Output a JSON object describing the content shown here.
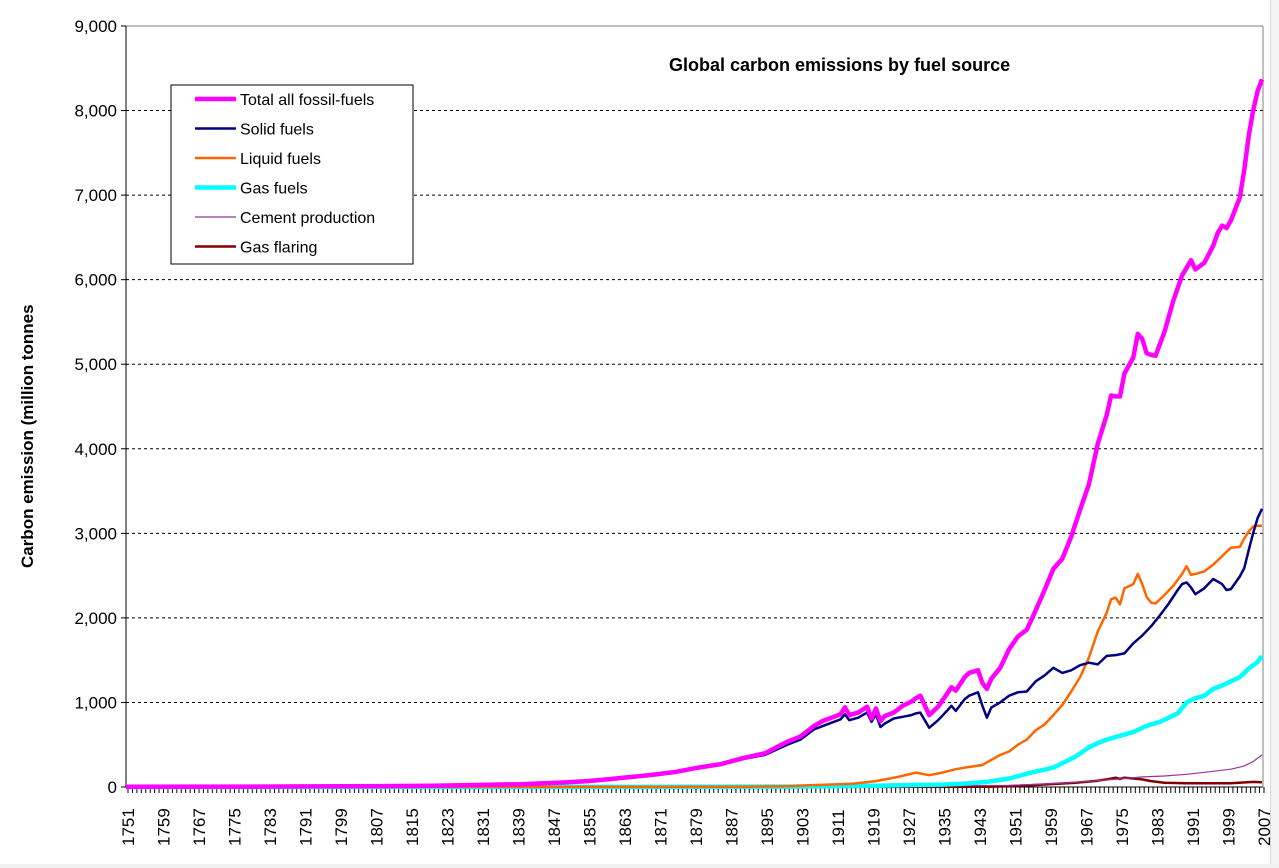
{
  "chart_data": {
    "type": "line",
    "title": "Global carbon emissions by fuel source",
    "xlabel": "",
    "ylabel": "Carbon emission (million tonnes",
    "xlim": [
      1751,
      2007
    ],
    "ylim": [
      0,
      9000
    ],
    "yticks": [
      0,
      1000,
      2000,
      3000,
      4000,
      5000,
      6000,
      7000,
      8000,
      9000
    ],
    "ytick_labels": [
      "0",
      "1,000",
      "2,000",
      "3,000",
      "4,000",
      "5,000",
      "6,000",
      "7,000",
      "8,000",
      "9,000"
    ],
    "xtick_labels": [
      "1751",
      "1759",
      "1767",
      "1775",
      "1783",
      "1791",
      "1799",
      "1807",
      "1815",
      "1823",
      "1831",
      "1839",
      "1847",
      "1855",
      "1863",
      "1871",
      "1879",
      "1887",
      "1895",
      "1903",
      "1911",
      "1919",
      "1927",
      "1935",
      "1943",
      "1951",
      "1959",
      "1967",
      "1975",
      "1983",
      "1991",
      "1999",
      "2007"
    ],
    "grid": "horizontal-dashed",
    "legend_position": "top-left",
    "series": [
      {
        "name": "Total all fossil-fuels",
        "color": "#ff00ff",
        "x": [
          1751,
          1780,
          1800,
          1820,
          1830,
          1840,
          1850,
          1855,
          1860,
          1865,
          1870,
          1875,
          1880,
          1885,
          1890,
          1895,
          1900,
          1903,
          1906,
          1908,
          1910,
          1912,
          1913,
          1914,
          1916,
          1918,
          1919,
          1920,
          1921,
          1922,
          1924,
          1926,
          1928,
          1929,
          1930,
          1932,
          1934,
          1936,
          1937,
          1938,
          1940,
          1941,
          1943,
          1944,
          1945,
          1946,
          1948,
          1950,
          1952,
          1954,
          1956,
          1958,
          1960,
          1962,
          1964,
          1966,
          1968,
          1970,
          1972,
          1973,
          1974,
          1975,
          1976,
          1978,
          1979,
          1980,
          1981,
          1982,
          1983,
          1985,
          1987,
          1989,
          1990,
          1991,
          1992,
          1994,
          1996,
          1997,
          1998,
          1999,
          2000,
          2002,
          2003,
          2004,
          2005,
          2006,
          2007
        ],
        "values": [
          3,
          5,
          8,
          14,
          24,
          33,
          54,
          70,
          93,
          120,
          147,
          180,
          230,
          270,
          341,
          398,
          534,
          598,
          720,
          780,
          819,
          860,
          943,
          850,
          880,
          950,
          810,
          930,
          780,
          840,
          880,
          960,
          1010,
          1050,
          1080,
          850,
          950,
          1100,
          1180,
          1140,
          1300,
          1350,
          1380,
          1230,
          1160,
          1280,
          1410,
          1630,
          1780,
          1860,
          2090,
          2330,
          2580,
          2700,
          2960,
          3280,
          3580,
          4060,
          4400,
          4630,
          4620,
          4620,
          4890,
          5080,
          5360,
          5300,
          5130,
          5110,
          5100,
          5380,
          5750,
          6050,
          6140,
          6230,
          6120,
          6200,
          6400,
          6550,
          6640,
          6610,
          6700,
          6970,
          7300,
          7700,
          8000,
          8230,
          8370
        ]
      },
      {
        "name": "Solid fuels",
        "color": "#000080",
        "x": [
          1751,
          1780,
          1800,
          1820,
          1830,
          1840,
          1850,
          1855,
          1860,
          1865,
          1870,
          1875,
          1880,
          1885,
          1890,
          1895,
          1900,
          1903,
          1906,
          1908,
          1910,
          1912,
          1913,
          1914,
          1916,
          1918,
          1919,
          1920,
          1921,
          1922,
          1924,
          1926,
          1928,
          1929,
          1930,
          1932,
          1934,
          1936,
          1937,
          1938,
          1940,
          1941,
          1943,
          1944,
          1945,
          1946,
          1948,
          1950,
          1952,
          1954,
          1956,
          1958,
          1960,
          1962,
          1964,
          1966,
          1968,
          1970,
          1972,
          1974,
          1976,
          1978,
          1980,
          1982,
          1984,
          1986,
          1988,
          1989,
          1990,
          1991,
          1992,
          1994,
          1996,
          1998,
          1999,
          2000,
          2002,
          2003,
          2004,
          2005,
          2006,
          2007
        ],
        "values": [
          3,
          5,
          8,
          14,
          24,
          33,
          54,
          70,
          93,
          120,
          145,
          175,
          225,
          265,
          330,
          380,
          500,
          560,
          680,
          720,
          760,
          800,
          860,
          790,
          820,
          880,
          770,
          860,
          710,
          750,
          810,
          830,
          850,
          870,
          880,
          700,
          790,
          900,
          960,
          900,
          1040,
          1080,
          1120,
          960,
          820,
          940,
          1000,
          1080,
          1120,
          1130,
          1250,
          1320,
          1410,
          1350,
          1380,
          1440,
          1470,
          1450,
          1550,
          1560,
          1580,
          1700,
          1790,
          1900,
          2030,
          2170,
          2330,
          2400,
          2420,
          2360,
          2280,
          2350,
          2460,
          2400,
          2330,
          2340,
          2490,
          2590,
          2800,
          3000,
          3180,
          3290
        ]
      },
      {
        "name": "Liquid fuels",
        "color": "#ff6600",
        "x": [
          1751,
          1870,
          1890,
          1900,
          1905,
          1910,
          1915,
          1920,
          1925,
          1929,
          1932,
          1935,
          1938,
          1940,
          1944,
          1946,
          1948,
          1950,
          1952,
          1954,
          1956,
          1958,
          1960,
          1962,
          1964,
          1966,
          1968,
          1970,
          1972,
          1973,
          1974,
          1975,
          1976,
          1978,
          1979,
          1980,
          1981,
          1982,
          1983,
          1985,
          1987,
          1989,
          1990,
          1991,
          1992,
          1994,
          1996,
          1998,
          1999,
          2000,
          2002,
          2003,
          2004,
          2005,
          2006,
          2007
        ],
        "values": [
          0,
          1,
          3,
          10,
          20,
          30,
          40,
          70,
          120,
          170,
          140,
          170,
          210,
          230,
          260,
          320,
          380,
          420,
          500,
          560,
          670,
          740,
          850,
          970,
          1130,
          1300,
          1530,
          1840,
          2060,
          2220,
          2240,
          2160,
          2350,
          2400,
          2520,
          2400,
          2250,
          2180,
          2170,
          2270,
          2380,
          2520,
          2610,
          2510,
          2520,
          2550,
          2630,
          2730,
          2780,
          2830,
          2840,
          2940,
          3020,
          3080,
          3090,
          3090
        ]
      },
      {
        "name": "Gas fuels",
        "color": "#00ffff",
        "x": [
          1751,
          1880,
          1900,
          1910,
          1920,
          1930,
          1935,
          1940,
          1945,
          1950,
          1955,
          1960,
          1965,
          1968,
          1970,
          1972,
          1974,
          1976,
          1978,
          1980,
          1982,
          1984,
          1986,
          1988,
          1990,
          1992,
          1994,
          1996,
          1998,
          2000,
          2002,
          2004,
          2006,
          2007
        ],
        "values": [
          0,
          2,
          5,
          10,
          15,
          25,
          28,
          40,
          60,
          100,
          170,
          230,
          360,
          470,
          520,
          560,
          590,
          620,
          650,
          700,
          740,
          770,
          820,
          870,
          1000,
          1050,
          1080,
          1160,
          1200,
          1250,
          1300,
          1400,
          1480,
          1550
        ]
      },
      {
        "name": "Cement production",
        "color": "#993399",
        "x": [
          1751,
          1928,
          1940,
          1950,
          1955,
          1960,
          1965,
          1970,
          1975,
          1980,
          1985,
          1990,
          1995,
          2000,
          2003,
          2005,
          2007
        ],
        "values": [
          0,
          10,
          15,
          20,
          30,
          40,
          55,
          75,
          95,
          120,
          130,
          150,
          180,
          210,
          250,
          300,
          380
        ]
      },
      {
        "name": "Gas flaring",
        "color": "#800000",
        "x": [
          1751,
          1945,
          1950,
          1955,
          1960,
          1965,
          1970,
          1972,
          1974,
          1975,
          1976,
          1978,
          1980,
          1982,
          1985,
          1990,
          1995,
          2000,
          2005,
          2007
        ],
        "values": [
          0,
          2,
          10,
          20,
          35,
          50,
          75,
          90,
          110,
          95,
          110,
          100,
          90,
          70,
          50,
          45,
          45,
          45,
          60,
          55
        ]
      }
    ]
  }
}
